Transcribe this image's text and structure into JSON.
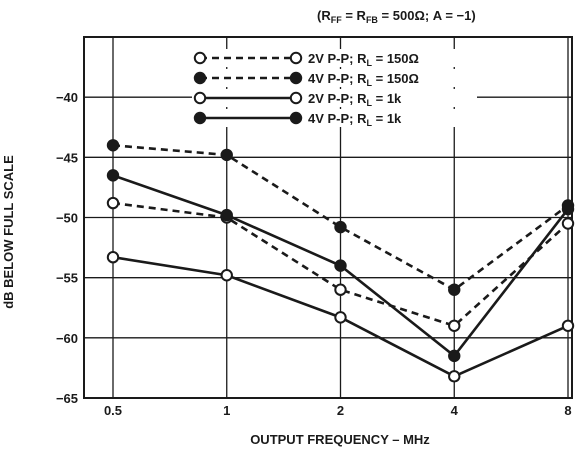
{
  "chart_data": {
    "type": "line",
    "annotation": "(Rₙₙ = Rₙₙ = 500Ω; A = −1)",
    "annotation_parts": [
      "(R",
      "FF",
      " = R",
      "FB",
      " = 500Ω; A = −1)"
    ],
    "xlabel": "OUTPUT FREQUENCY – MHz",
    "ylabel": "dB BELOW FULL SCALE",
    "x_ticks": [
      0.5,
      1,
      2,
      4,
      8
    ],
    "x_tick_labels": [
      "0.5",
      "1",
      "2",
      "4",
      "8"
    ],
    "y_ticks": [
      -40,
      -45,
      -50,
      -55,
      -60,
      -65
    ],
    "y_tick_labels": [
      "−40",
      "−45",
      "−50",
      "−55",
      "−60",
      "−65"
    ],
    "xlim": [
      0.5,
      8
    ],
    "ylim": [
      -65,
      -35
    ],
    "x_scale": "log",
    "grid": true,
    "legend_position": "top-center",
    "series": [
      {
        "name": "2V P-P; R_L = 150Ω",
        "name_parts": [
          "2V P-P; R",
          "L",
          " = 150Ω"
        ],
        "line_style": "dashed",
        "marker": "open-circle",
        "x": [
          0.5,
          1,
          2,
          4,
          8
        ],
        "values": [
          -48.8,
          -50.0,
          -56.0,
          -59.0,
          -50.5
        ]
      },
      {
        "name": "4V P-P; R_L = 150Ω",
        "name_parts": [
          "4V P-P; R",
          "L",
          " = 150Ω"
        ],
        "line_style": "dashed",
        "marker": "filled-circle",
        "x": [
          0.5,
          1,
          2,
          4,
          8
        ],
        "values": [
          -44.0,
          -44.8,
          -50.8,
          -56.0,
          -49.0
        ]
      },
      {
        "name": "2V P-P; R_L = 1k",
        "name_parts": [
          "2V P-P; R",
          "L",
          " = 1k"
        ],
        "line_style": "solid",
        "marker": "open-circle",
        "x": [
          0.5,
          1,
          2,
          4,
          8
        ],
        "values": [
          -53.3,
          -54.8,
          -58.3,
          -63.2,
          -59.0
        ]
      },
      {
        "name": "4V P-P; R_L = 1k",
        "name_parts": [
          "4V P-P; R",
          "L",
          " = 1k"
        ],
        "line_style": "solid",
        "marker": "filled-circle",
        "x": [
          0.5,
          1,
          2,
          4,
          8
        ],
        "values": [
          -46.5,
          -49.8,
          -54.0,
          -61.5,
          -49.3
        ]
      }
    ]
  }
}
